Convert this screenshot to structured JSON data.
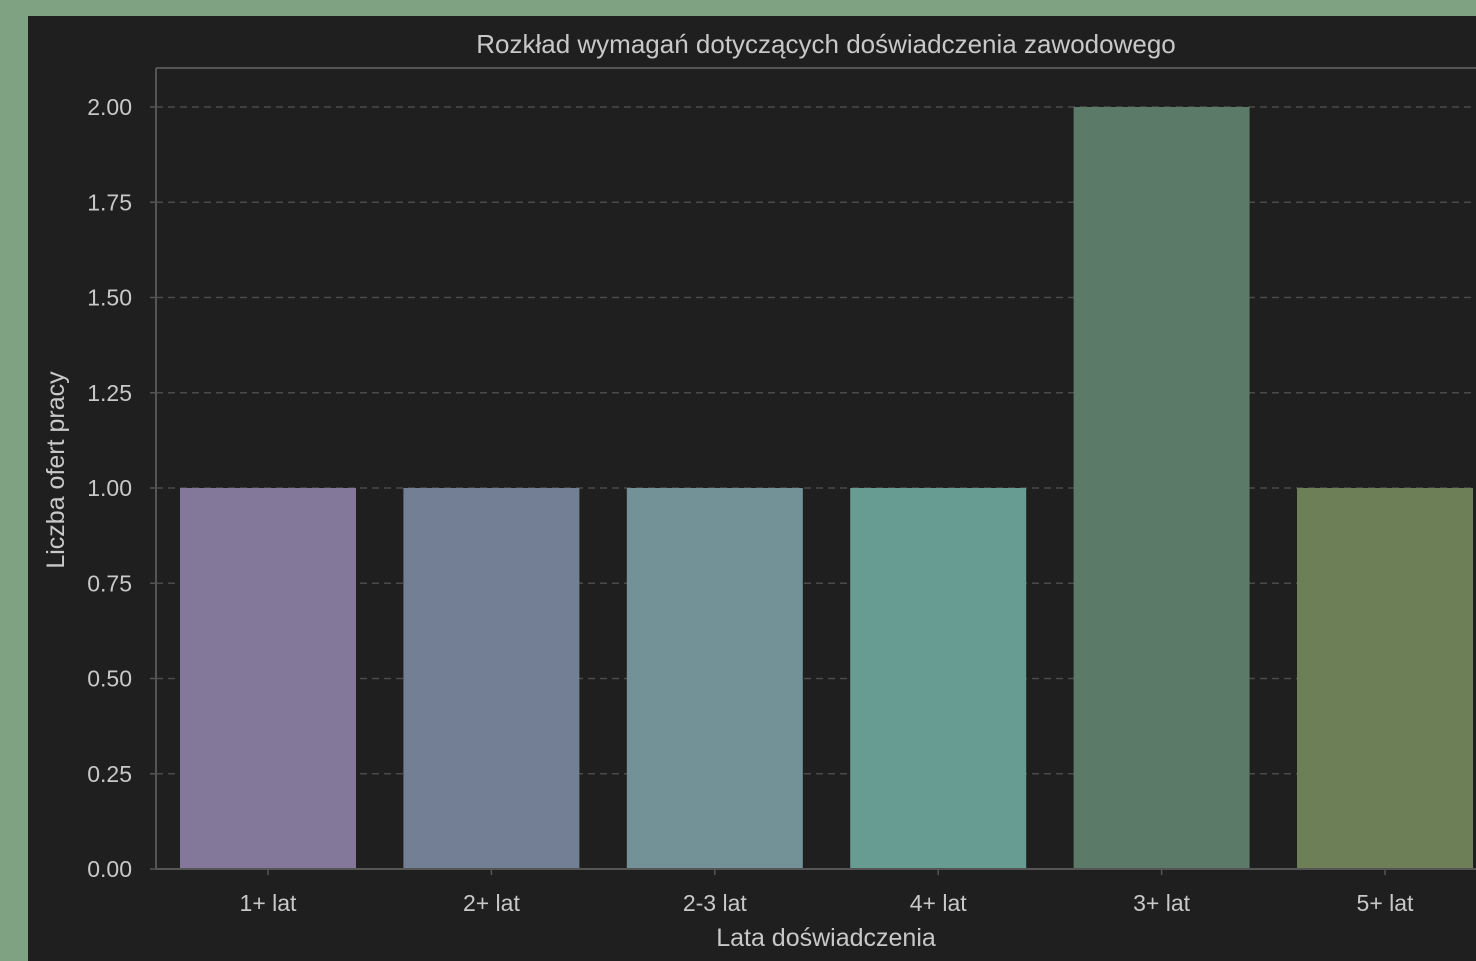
{
  "chart_data": {
    "type": "bar",
    "title": "Rozkład wymagań dotyczących doświadczenia zawodowego",
    "xlabel": "Lata doświadczenia",
    "ylabel": "Liczba ofert pracy",
    "categories": [
      "1+ lat",
      "2+ lat",
      "2-3 lat",
      "4+ lat",
      "3+ lat",
      "5+ lat"
    ],
    "values": [
      1,
      1,
      1,
      1,
      2,
      1
    ],
    "colors": [
      "#837899",
      "#727f95",
      "#739297",
      "#679c92",
      "#5b7a68",
      "#6d7f56"
    ],
    "ylim": [
      0,
      2.1
    ],
    "yticks": [
      0,
      0.25,
      0.5,
      0.75,
      1.0,
      1.25,
      1.5,
      1.75,
      2.0
    ],
    "ytick_labels": [
      "0.00",
      "0.25",
      "0.50",
      "0.75",
      "1.00",
      "1.25",
      "1.50",
      "1.75",
      "2.00"
    ],
    "grid": "y, dashed",
    "background": "#1f1f1f",
    "page_background": "#7fa282"
  }
}
